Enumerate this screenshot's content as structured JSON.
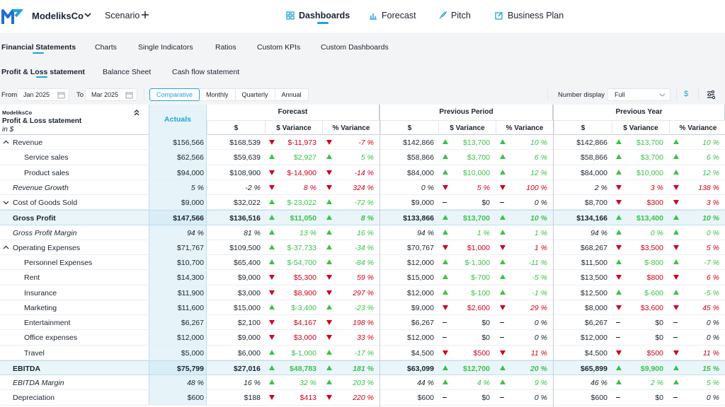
{
  "header": {
    "brand": "ModeliksCo",
    "scenario": "Scenario",
    "nav": [
      {
        "label": "Dashboards",
        "active": true,
        "icon": "grid-icon"
      },
      {
        "label": "Forecast",
        "active": false,
        "icon": "bar-chart-icon"
      },
      {
        "label": "Pitch",
        "active": false,
        "icon": "rocket-icon"
      },
      {
        "label": "Business Plan",
        "active": false,
        "icon": "edit-icon"
      }
    ]
  },
  "tabs1": [
    "Financial Statements",
    "Charts",
    "Single Indicators",
    "Ratios",
    "Custom KPIs",
    "Custom Dashboards"
  ],
  "tabs2": [
    "Profit & Loss statement",
    "Balance Sheet",
    "Cash flow statement"
  ],
  "filters": {
    "from_label": "From",
    "from_value": "Jan 2025",
    "to_label": "To",
    "to_value": "Mar 2025",
    "segments": [
      "Comparative",
      "Monthly",
      "Quarterly",
      "Annual"
    ],
    "number_display_label": "Number display",
    "number_display_value": "Full",
    "currency_symbol": "$"
  },
  "table": {
    "company": "ModeliksCo",
    "statement": "Profit & Loss statement",
    "unit": "in $",
    "actuals_label": "Actuals",
    "groups": [
      "Forecast",
      "Previous Period",
      "Previous Year"
    ],
    "subcols": [
      "$",
      "$ Variance",
      "% Variance"
    ],
    "rows": [
      {
        "label": "Revenue",
        "type": "parent-open",
        "act": "$156,566",
        "g": [
          [
            "$168,539",
            "down",
            "$-11,973",
            "down",
            "-7 %"
          ],
          [
            "$142,866",
            "up",
            "$13,700",
            "up",
            "10 %"
          ],
          [
            "$142,866",
            "up",
            "$13,700",
            "up",
            "10 %"
          ]
        ]
      },
      {
        "label": "Service sales",
        "type": "child",
        "act": "$62,566",
        "g": [
          [
            "$59,639",
            "up",
            "$2,927",
            "up",
            "5 %"
          ],
          [
            "$58,866",
            "up",
            "$3,700",
            "up",
            "6 %"
          ],
          [
            "$58,866",
            "up",
            "$3,700",
            "up",
            "6 %"
          ]
        ]
      },
      {
        "label": "Product sales",
        "type": "child",
        "act": "$94,000",
        "g": [
          [
            "$108,900",
            "down",
            "$-14,900",
            "down",
            "-14 %"
          ],
          [
            "$84,000",
            "up",
            "$10,000",
            "up",
            "12 %"
          ],
          [
            "$84,000",
            "up",
            "$10,000",
            "up",
            "12 %"
          ]
        ]
      },
      {
        "label": "Revenue Growth",
        "type": "italic",
        "act": "5 %",
        "g": [
          [
            "-2 %",
            "down",
            "8 %",
            "down",
            "324 %"
          ],
          [
            "0 %",
            "down",
            "5 %",
            "down",
            "100 %"
          ],
          [
            "2 %",
            "down",
            "3 %",
            "down",
            "138 %"
          ]
        ]
      },
      {
        "label": "Cost of Goods Sold",
        "type": "parent-closed",
        "act": "$9,000",
        "g": [
          [
            "$32,022",
            "up",
            "$-23,022",
            "up",
            "-72 %"
          ],
          [
            "$9,000",
            "flat",
            "$0",
            "flat",
            "0 %"
          ],
          [
            "$8,700",
            "down",
            "$300",
            "down",
            "3 %"
          ]
        ]
      },
      {
        "label": "Gross Profit",
        "type": "bold",
        "act": "$147,566",
        "g": [
          [
            "$136,516",
            "up",
            "$11,050",
            "up",
            "8 %"
          ],
          [
            "$133,866",
            "up",
            "$13,700",
            "up",
            "10 %"
          ],
          [
            "$134,166",
            "up",
            "$13,400",
            "up",
            "10 %"
          ]
        ]
      },
      {
        "label": "Gross Profit Margin",
        "type": "italic",
        "act": "94 %",
        "g": [
          [
            "81 %",
            "up",
            "13 %",
            "up",
            "16 %"
          ],
          [
            "94 %",
            "up",
            "1 %",
            "up",
            "1 %"
          ],
          [
            "94 %",
            "up",
            "0 %",
            "up",
            "0 %"
          ]
        ]
      },
      {
        "label": "Operating Expenses",
        "type": "parent-open",
        "act": "$71,767",
        "g": [
          [
            "$109,500",
            "up",
            "$-37,733",
            "up",
            "-34 %"
          ],
          [
            "$70,767",
            "down",
            "$1,000",
            "down",
            "1 %"
          ],
          [
            "$68,267",
            "down",
            "$3,500",
            "down",
            "5 %"
          ]
        ]
      },
      {
        "label": "Personnel Expenses",
        "type": "child",
        "act": "$10,700",
        "g": [
          [
            "$65,400",
            "up",
            "$-54,700",
            "up",
            "-84 %"
          ],
          [
            "$12,000",
            "up",
            "$-1,300",
            "up",
            "-11 %"
          ],
          [
            "$11,500",
            "up",
            "$-800",
            "up",
            "-7 %"
          ]
        ]
      },
      {
        "label": "Rent",
        "type": "child",
        "act": "$14,300",
        "g": [
          [
            "$9,000",
            "down",
            "$5,300",
            "down",
            "59 %"
          ],
          [
            "$15,000",
            "up",
            "$-700",
            "up",
            "-5 %"
          ],
          [
            "$13,500",
            "down",
            "$800",
            "down",
            "6 %"
          ]
        ]
      },
      {
        "label": "Insurance",
        "type": "child",
        "act": "$11,900",
        "g": [
          [
            "$3,000",
            "down",
            "$8,900",
            "down",
            "297 %"
          ],
          [
            "$12,000",
            "up",
            "$-100",
            "up",
            "-1 %"
          ],
          [
            "$12,500",
            "up",
            "$-600",
            "up",
            "-5 %"
          ]
        ]
      },
      {
        "label": "Marketing",
        "type": "child",
        "act": "$11,600",
        "g": [
          [
            "$15,000",
            "up",
            "$-3,400",
            "up",
            "-23 %"
          ],
          [
            "$9,000",
            "down",
            "$2,600",
            "down",
            "29 %"
          ],
          [
            "$8,000",
            "down",
            "$3,600",
            "down",
            "45 %"
          ]
        ]
      },
      {
        "label": "Entertainment",
        "type": "child",
        "act": "$6,267",
        "g": [
          [
            "$2,100",
            "down",
            "$4,167",
            "down",
            "198 %"
          ],
          [
            "$6,267",
            "flat",
            "$0",
            "flat",
            "0 %"
          ],
          [
            "$6,267",
            "flat",
            "$0",
            "flat",
            "0 %"
          ]
        ]
      },
      {
        "label": "Office expenses",
        "type": "child",
        "act": "$12,000",
        "g": [
          [
            "$9,000",
            "down",
            "$3,000",
            "down",
            "33 %"
          ],
          [
            "$12,000",
            "flat",
            "$0",
            "flat",
            "0 %"
          ],
          [
            "$12,000",
            "flat",
            "$0",
            "flat",
            "0 %"
          ]
        ]
      },
      {
        "label": "Travel",
        "type": "child",
        "act": "$5,000",
        "g": [
          [
            "$6,000",
            "up",
            "$-1,000",
            "up",
            "-17 %"
          ],
          [
            "$4,500",
            "down",
            "$500",
            "down",
            "11 %"
          ],
          [
            "$4,500",
            "down",
            "$500",
            "down",
            "11 %"
          ]
        ]
      },
      {
        "label": "EBITDA",
        "type": "bold",
        "act": "$75,799",
        "g": [
          [
            "$27,016",
            "up",
            "$48,783",
            "up",
            "181 %"
          ],
          [
            "$63,099",
            "up",
            "$12,700",
            "up",
            "20 %"
          ],
          [
            "$65,899",
            "up",
            "$9,900",
            "up",
            "15 %"
          ]
        ]
      },
      {
        "label": "EBITDA Margin",
        "type": "italic",
        "act": "48 %",
        "g": [
          [
            "16 %",
            "up",
            "32 %",
            "up",
            "203 %"
          ],
          [
            "44 %",
            "up",
            "4 %",
            "up",
            "9 %"
          ],
          [
            "46 %",
            "up",
            "2 %",
            "up",
            "5 %"
          ]
        ]
      },
      {
        "label": "Depreciation",
        "type": "plain",
        "act": "$600",
        "g": [
          [
            "$188",
            "down",
            "$413",
            "down",
            "220 %"
          ],
          [
            "$600",
            "flat",
            "$0",
            "flat",
            "0 %"
          ],
          [
            "$600",
            "flat",
            "$0",
            "flat",
            "0 %"
          ]
        ]
      }
    ]
  }
}
